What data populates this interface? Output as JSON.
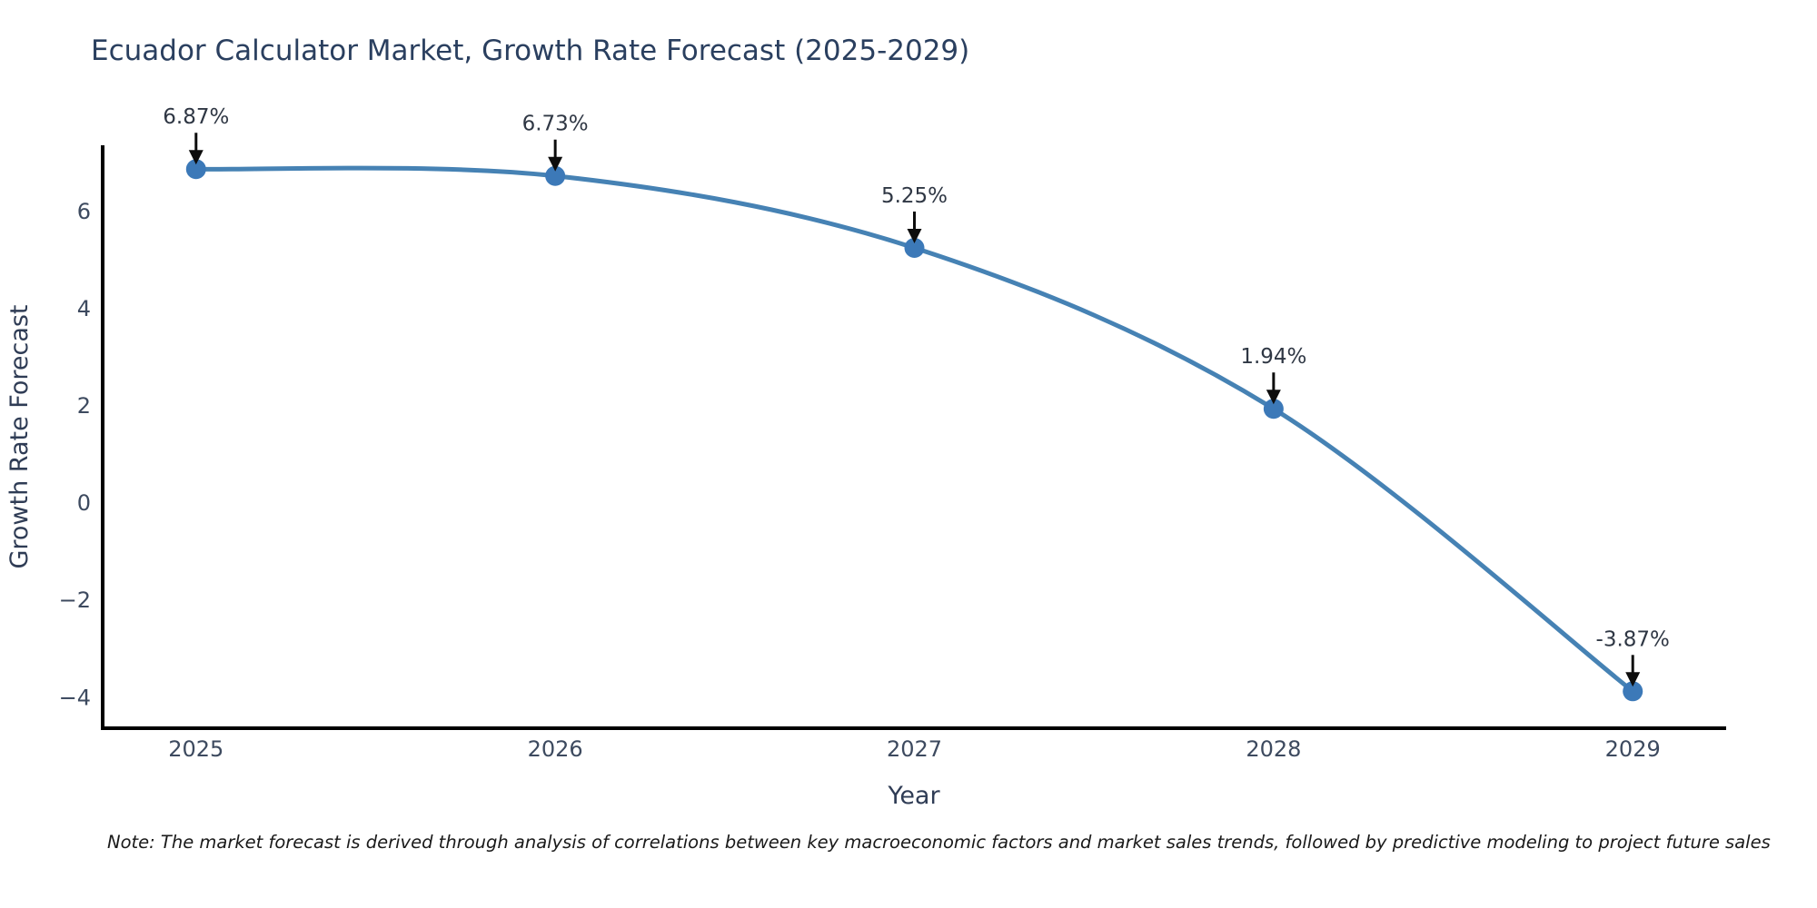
{
  "note": {
    "text": "Note: The market forecast is derived through analysis of correlations between key macroeconomic factors and market sales trends, followed by predictive modeling to project future sales"
  },
  "chart_data": {
    "type": "line",
    "title": "Ecuador Calculator Market, Growth Rate Forecast (2025-2029)",
    "xlabel": "Year",
    "ylabel": "Growth Rate Forecast",
    "x": [
      2025,
      2026,
      2027,
      2028,
      2029
    ],
    "values": [
      6.87,
      6.73,
      5.25,
      1.94,
      -3.87
    ],
    "point_labels": [
      "6.87%",
      "6.73%",
      "5.25%",
      "1.94%",
      "-3.87%"
    ],
    "xticks": [
      "2025",
      "2026",
      "2027",
      "2028",
      "2029"
    ],
    "yticks": [
      -4,
      -2,
      0,
      2,
      4,
      6
    ],
    "ytick_labels": [
      "−4",
      "−2",
      "0",
      "2",
      "4",
      "6"
    ],
    "xlim": [
      2024.74,
      2029.26
    ],
    "ylim": [
      -4.63,
      7.36
    ],
    "grid": false,
    "legend": false,
    "line_smoothing": true,
    "colors": {
      "line": "#4682b4",
      "marker": "#3c79b8",
      "axis": "#000000",
      "arrow": "#0d0d0d",
      "background": "#ffffff"
    }
  }
}
